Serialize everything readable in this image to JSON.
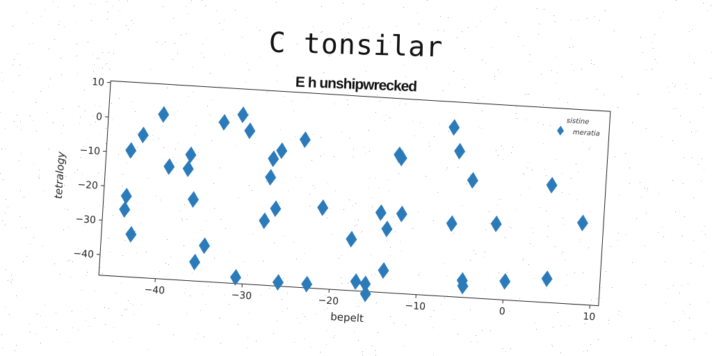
{
  "title": "C tonsilar",
  "chart_data": {
    "type": "scatter",
    "title": "E h unshipwrecked",
    "xlabel": "bepelt",
    "ylabel": "tetralogy",
    "xlim": [
      -46.5,
      11
    ],
    "ylim": [
      -46,
      10.5
    ],
    "xticks": [
      -40,
      -30,
      -20,
      -10,
      0,
      10
    ],
    "yticks": [
      10,
      0,
      -10,
      -20,
      -30,
      -40
    ],
    "grid": false,
    "legend_placement": "top-right",
    "marker": "diamond",
    "color": "#2b7bba",
    "legend": [
      "sistine",
      "meratia"
    ],
    "x": [
      -40.2,
      -42.4,
      -43.7,
      -39.2,
      -36.8,
      -37.0,
      -36.2,
      -43.9,
      -44.0,
      -43.1,
      -35.6,
      -34.6,
      -33.2,
      -31.1,
      -30.2,
      -27.3,
      -27.5,
      -26.4,
      -26.7,
      -27.9,
      -30.8,
      -25.9,
      -23.8,
      -22.6,
      -21.3,
      -17.8,
      -17.0,
      -15.9,
      -15.8,
      -14.6,
      -13.9,
      -13.8,
      -12.9,
      -12.2,
      -12.6,
      -6.8,
      -6.0,
      -6.4,
      -4.3,
      -4.8,
      -4.7,
      -1.3,
      0.1,
      4.8,
      4.9,
      8.6
    ],
    "y": [
      1.7,
      -4.6,
      -9.3,
      -13.3,
      -9.5,
      -13.6,
      -22.4,
      -22.6,
      -26.5,
      -33.6,
      -40.5,
      -35.6,
      0.5,
      3.0,
      -1.5,
      -9.2,
      -14.6,
      -6.7,
      -23.6,
      -27.3,
      -44.2,
      -44.9,
      -3.1,
      -44.9,
      -22.5,
      -31.1,
      -43.3,
      -43.8,
      -46.7,
      -22.9,
      -39.6,
      -27.5,
      -5.8,
      -22.9,
      -6.7,
      3.1,
      -3.7,
      -24.8,
      -11.9,
      -41.1,
      -42.7,
      -24.1,
      -40.6,
      -11.9,
      -39.1,
      -22.3
    ]
  }
}
